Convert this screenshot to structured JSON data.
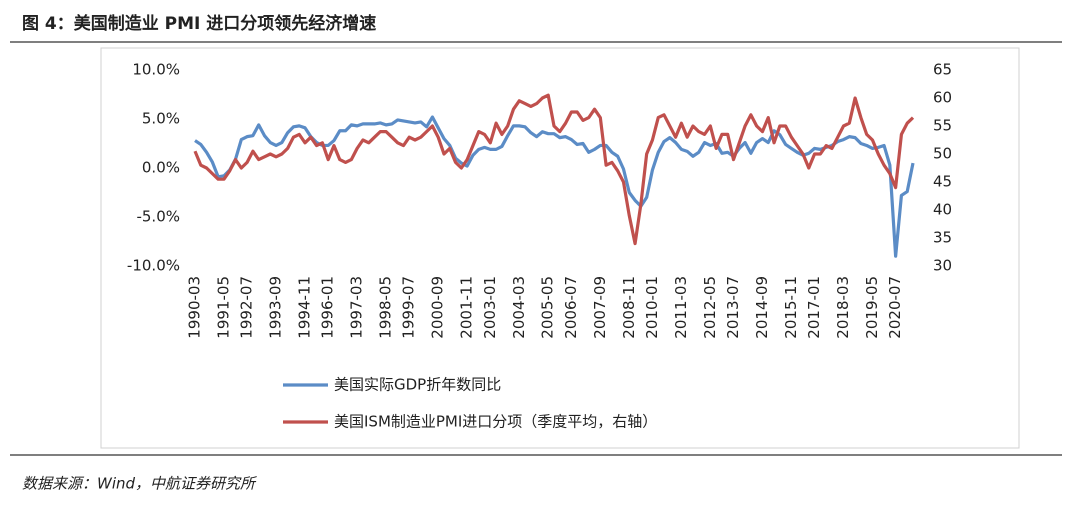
{
  "chart_data": {
    "type": "line",
    "title": "图 4：美国制造业 PMI 进口分项领先经济增速",
    "source": "数据来源：Wind，中航证券研究所",
    "categories": [
      "1990-03",
      null,
      null,
      null,
      null,
      "1991-05",
      null,
      null,
      null,
      "1992-07",
      null,
      null,
      null,
      null,
      "1993-09",
      null,
      null,
      null,
      null,
      "1994-11",
      null,
      null,
      null,
      "1996-01",
      null,
      null,
      null,
      null,
      "1997-03",
      null,
      null,
      null,
      null,
      "1998-05",
      null,
      null,
      null,
      "1999-07",
      null,
      null,
      null,
      null,
      "2000-09",
      null,
      null,
      null,
      null,
      "2001-11",
      null,
      null,
      null,
      "2003-01",
      null,
      null,
      null,
      null,
      "2004-03",
      null,
      null,
      null,
      null,
      "2005-05",
      null,
      null,
      null,
      "2006-07",
      null,
      null,
      null,
      null,
      "2007-09",
      null,
      null,
      null,
      null,
      "2008-11",
      null,
      null,
      null,
      "2010-01",
      null,
      null,
      null,
      null,
      "2011-03",
      null,
      null,
      null,
      null,
      "2012-05",
      null,
      null,
      null,
      "2013-07",
      null,
      null,
      null,
      null,
      "2014-09",
      null,
      null,
      null,
      null,
      "2015-11",
      null,
      null,
      null,
      "2017-01",
      null,
      null,
      null,
      null,
      "2018-03",
      null,
      null,
      null,
      null,
      "2019-05",
      null,
      null,
      null,
      "2020-07",
      null,
      null,
      null
    ],
    "series": [
      {
        "name": "美国实际GDP折年数同比",
        "color": "#5b8cc6",
        "values": [
          2.8,
          2.4,
          1.6,
          0.6,
          -0.9,
          -0.8,
          -0.2,
          0.9,
          2.9,
          3.2,
          3.3,
          4.4,
          3.3,
          2.6,
          2.3,
          2.6,
          3.6,
          4.2,
          4.3,
          4.1,
          3.2,
          2.6,
          2.3,
          2.3,
          2.8,
          3.8,
          3.8,
          4.4,
          4.3,
          4.5,
          4.5,
          4.5,
          4.6,
          4.4,
          4.5,
          4.9,
          4.8,
          4.7,
          4.6,
          4.7,
          4.2,
          5.2,
          4.1,
          3.0,
          2.3,
          1.0,
          0.5,
          0.2,
          1.3,
          1.9,
          2.1,
          1.9,
          1.9,
          2.2,
          3.3,
          4.3,
          4.3,
          4.2,
          3.6,
          3.2,
          3.7,
          3.5,
          3.5,
          3.1,
          3.2,
          2.9,
          2.4,
          2.5,
          1.6,
          1.9,
          2.3,
          2.3,
          1.6,
          1.2,
          -0.1,
          -2.5,
          -3.3,
          -3.9,
          -3.0,
          -0.2,
          1.6,
          2.7,
          3.1,
          2.6,
          1.9,
          1.7,
          1.2,
          1.6,
          2.6,
          2.3,
          2.5,
          1.5,
          1.6,
          1.2,
          2.0,
          2.6,
          1.5,
          2.6,
          3.0,
          2.6,
          3.8,
          3.4,
          2.4,
          2.0,
          1.6,
          1.3,
          1.5,
          2.0,
          1.9,
          2.1,
          2.3,
          2.7,
          2.9,
          3.2,
          3.1,
          2.5,
          2.3,
          2.0,
          2.1,
          2.3,
          0.3,
          -9.0,
          -2.8,
          -2.4,
          0.5
        ]
      },
      {
        "name": "美国ISM制造业PMI进口分项（季度平均，右轴）",
        "color": "#c0504d",
        "axis": "y2",
        "values": [
          50.5,
          48,
          47.5,
          46.5,
          45.5,
          45.5,
          47,
          49,
          47.5,
          48.5,
          50.5,
          49,
          49.5,
          50,
          49.5,
          50,
          51,
          53,
          53.5,
          52,
          53,
          51.5,
          52,
          49,
          51.5,
          49,
          48.5,
          49,
          51,
          52.5,
          52,
          53,
          54,
          54,
          53,
          52,
          51.5,
          53,
          52.5,
          53,
          54,
          55,
          53,
          50,
          51,
          48.5,
          47.5,
          49,
          51.5,
          54,
          53.5,
          52,
          55.5,
          53.5,
          55,
          58,
          59.5,
          59,
          58.5,
          59,
          60,
          60.5,
          55,
          54,
          55.5,
          57.5,
          57.5,
          56,
          56.5,
          58,
          56.5,
          48,
          48.5,
          47,
          45,
          39,
          34,
          41,
          50,
          52.5,
          56.5,
          57,
          55,
          53,
          55.5,
          53,
          55,
          54,
          53.5,
          55,
          51,
          53.5,
          53.5,
          49,
          52,
          55,
          57,
          55,
          54,
          56.5,
          52,
          55,
          55,
          53,
          51.5,
          50,
          47.5,
          50,
          50,
          51.5,
          51,
          53,
          55,
          55.5,
          60,
          56.5,
          53.5,
          52.5,
          50,
          48,
          46.5,
          44,
          53.5,
          55.5,
          56.5
        ]
      }
    ],
    "ylim": [
      -10,
      10
    ],
    "yticks": [
      {
        "value": -10,
        "label": "-10.0%"
      },
      {
        "value": -5,
        "label": "-5.0%"
      },
      {
        "value": 0,
        "label": "0.0%"
      },
      {
        "value": 5,
        "label": "5.0%"
      },
      {
        "value": 10,
        "label": "10.0%"
      }
    ],
    "y2lim": [
      30,
      65
    ],
    "y2ticks": [
      30,
      35,
      40,
      45,
      50,
      55,
      60,
      65
    ],
    "grid": false
  }
}
